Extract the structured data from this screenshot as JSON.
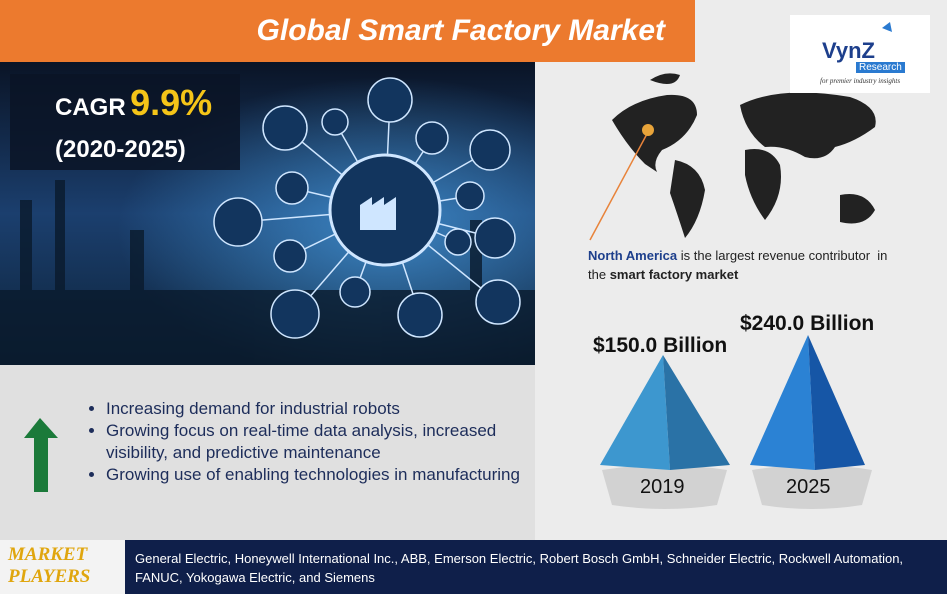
{
  "header": {
    "title": "Global Smart Factory Market"
  },
  "logo": {
    "name": "VynZ",
    "sub": "Research",
    "tagline": "for premier industry insights"
  },
  "cagr": {
    "label": "CAGR",
    "value": "9.9%",
    "period": "(2020-2025)"
  },
  "region": {
    "highlight": "North America",
    "text": " is the largest revenue contributor  in the ",
    "highlight2": "smart factory market"
  },
  "market_size": [
    {
      "value": "$150.0 Billion",
      "year": "2019"
    },
    {
      "value": "$240.0 Billion",
      "year": "2025"
    }
  ],
  "drivers": [
    "Increasing demand for industrial robots",
    "Growing focus on real-time data analysis, increased visibility, and predictive maintenance",
    "Growing use of enabling technologies in manufacturing"
  ],
  "players": {
    "label_1": "MARKET",
    "label_2": "PLAYERS",
    "text": "General Electric, Honeywell International Inc., ABB, Emerson Electric, Robert Bosch GmbH, Schneider Electric, Rockwell Automation, FANUC, Yokogawa Electric, and Siemens"
  }
}
